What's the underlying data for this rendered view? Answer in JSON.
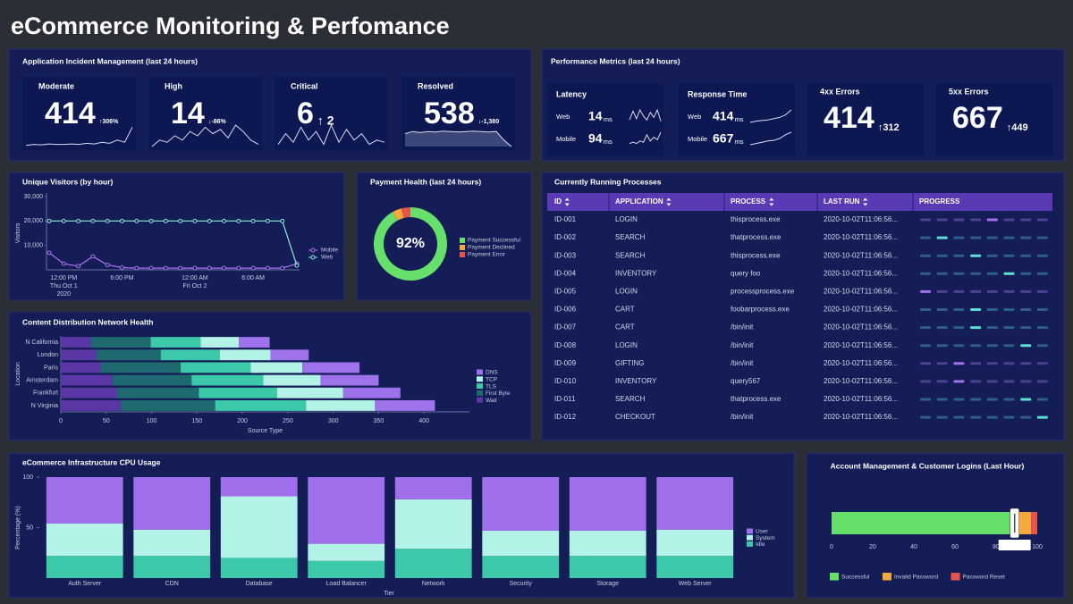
{
  "title": "eCommerce Monitoring & Perfomance",
  "incidents": {
    "title": "Application Incident Management (last 24 hours)",
    "tiles": [
      {
        "label": "Moderate",
        "value": 414,
        "change": "↑306%",
        "color": "#e8524f"
      },
      {
        "label": "High",
        "value": 14,
        "change": "↓-86%",
        "color": "#f5a93a"
      },
      {
        "label": "Critical",
        "value": 6,
        "change": "↑ 2",
        "color": "#e8524f"
      },
      {
        "label": "Resolved",
        "value": 538,
        "change": "↓-1,380",
        "color": "#5be36d"
      }
    ]
  },
  "performance": {
    "title": "Performance Metrics (last 24 hours)",
    "latency": {
      "label": "Latency",
      "rows": [
        {
          "label": "Web",
          "value": 14,
          "unit": "ms"
        },
        {
          "label": "Mobile",
          "value": 94,
          "unit": "ms"
        }
      ]
    },
    "response_time": {
      "label": "Response Time",
      "rows": [
        {
          "label": "Web",
          "value": 414,
          "unit": "ms"
        },
        {
          "label": "Mobile",
          "value": 667,
          "unit": "ms"
        }
      ]
    },
    "errors": [
      {
        "label": "4xx Errors",
        "value": 414,
        "change": "↑312",
        "color": "#e8524f"
      },
      {
        "label": "5xx Errors",
        "value": 667,
        "change": "↑449",
        "color": "#e8524f"
      }
    ]
  },
  "processes": {
    "title": "Currently Running Processes",
    "columns": [
      "ID",
      "APPLICATION",
      "PROCESS",
      "LAST RUN",
      "PROGRESS"
    ],
    "rows": [
      [
        "ID-001",
        "LOGIN",
        "thisprocess.exe",
        "2020-10-02T11:06:56..."
      ],
      [
        "ID-002",
        "SEARCH",
        "thatprocess.exe",
        "2020-10-02T11:06:56..."
      ],
      [
        "ID-003",
        "SEARCH",
        "thisprocess.exe",
        "2020-10-02T11:06:56..."
      ],
      [
        "ID-004",
        "INVENTORY",
        "query foo",
        "2020-10-02T11:06:56..."
      ],
      [
        "ID-005",
        "LOGIN",
        "processprocess.exe",
        "2020-10-02T11:06:56..."
      ],
      [
        "ID-006",
        "CART",
        "foobarprocess.exe",
        "2020-10-02T11:06:56..."
      ],
      [
        "ID-007",
        "CART",
        "/bin/init",
        "2020-10-02T11:06:56..."
      ],
      [
        "ID-008",
        "LOGIN",
        "/bin/init",
        "2020-10-02T11:06:56..."
      ],
      [
        "ID-009",
        "GIFTING",
        "/bin/init",
        "2020-10-02T11:06:56..."
      ],
      [
        "ID-010",
        "INVENTORY",
        "query567",
        "2020-10-02T11:06:56..."
      ],
      [
        "ID-011",
        "SEARCH",
        "thatprocess.exe",
        "2020-10-02T11:06:56..."
      ],
      [
        "ID-012",
        "CHECKOUT",
        "/bin/init",
        "2020-10-02T11:06:56..."
      ]
    ]
  },
  "chart_data": [
    {
      "type": "line",
      "title": "Unique Visitors (by hour)",
      "y_label": "Visitors",
      "categories": [
        null,
        "12:00 PM",
        null,
        null,
        null,
        "6:00 PM",
        null,
        null,
        null,
        null,
        "12:00 AM",
        null,
        null,
        null,
        "6:00 AM",
        null,
        null,
        null
      ],
      "category_dates": [
        null,
        "Thu Oct 1",
        null,
        null,
        null,
        null,
        null,
        null,
        null,
        null,
        "Fri Oct 2",
        null,
        null,
        null,
        null,
        null,
        null,
        null
      ],
      "year_label": "2020",
      "series": [
        {
          "name": "Mobile",
          "color": "#a875f0",
          "values": [
            7000,
            2500,
            1500,
            5500,
            2000,
            900,
            700,
            700,
            700,
            700,
            700,
            700,
            700,
            700,
            700,
            700,
            700,
            2500
          ]
        },
        {
          "name": "Web",
          "color": "#8fe8d8",
          "values": [
            20000,
            20000,
            20000,
            20000,
            20000,
            20000,
            20000,
            20000,
            20000,
            20000,
            20000,
            20000,
            20000,
            20000,
            20000,
            20000,
            20000,
            1800
          ]
        }
      ],
      "ylim": [
        0,
        30000
      ],
      "yticks": [
        {
          "value": 10000,
          "label": "10,000"
        },
        {
          "value": 20000,
          "label": "20,000"
        },
        {
          "value": 30000,
          "label": "30,000"
        }
      ],
      "markers": true,
      "legend": "right"
    },
    {
      "type": "donut",
      "title": "Payment Health (last 24 hours)",
      "categories": [
        "Payment Successful",
        "Payment Declined",
        "Payment Error"
      ],
      "values": [
        92,
        4,
        4
      ],
      "colors": [
        "#66e06a",
        "#f5a93a",
        "#e8524f"
      ],
      "center_label": "92%"
    },
    {
      "type": "barh",
      "stacked": true,
      "title": "Content Distribution Network Health",
      "x_label": "Source Type",
      "y_label": "Location",
      "categories": [
        "N California",
        "London",
        "Paris",
        "Amsterdam",
        "Frankfurt",
        "N Virginia"
      ],
      "series": [
        {
          "name": "Wait",
          "color": "#5b36a5",
          "values": [
            33,
            39,
            44,
            57,
            62,
            66
          ]
        },
        {
          "name": "First Byte",
          "color": "#1e6a70",
          "values": [
            66,
            71,
            88,
            87,
            90,
            104
          ]
        },
        {
          "name": "TLS",
          "color": "#3cc9aa",
          "values": [
            55,
            65,
            77,
            79,
            86,
            100
          ]
        },
        {
          "name": "TCP",
          "color": "#b3f2e6",
          "values": [
            42,
            56,
            57,
            63,
            73,
            76
          ]
        },
        {
          "name": "DNS",
          "color": "#9d72ea",
          "values": [
            34,
            42,
            63,
            64,
            63,
            66
          ]
        }
      ],
      "xlim": [
        0,
        450
      ],
      "xticks": [
        0,
        50,
        100,
        150,
        200,
        250,
        300,
        350,
        400
      ],
      "legend": "right"
    },
    {
      "type": "bar",
      "stacked": true,
      "title": "eCommerce Infrastructure CPU Usage",
      "x_label": "Tier",
      "y_label": "Percentage (%)",
      "categories": [
        "Auth Server",
        "CDN",
        "Database",
        "Load Balancer",
        "Network",
        "Security",
        "Storage",
        "Web Server"
      ],
      "series": [
        {
          "name": "Idle",
          "color": "#3cc9aa",
          "values": [
            22,
            22,
            20,
            17,
            29,
            22,
            22,
            22
          ]
        },
        {
          "name": "System",
          "color": "#b3f2e6",
          "values": [
            32,
            26,
            61,
            17,
            49,
            25,
            25,
            26
          ]
        },
        {
          "name": "User",
          "color": "#a070ec",
          "values": [
            46,
            52,
            19,
            66,
            22,
            53,
            53,
            52
          ]
        }
      ],
      "ylim": [
        0,
        100
      ],
      "yticks": [
        50,
        100
      ],
      "legend": "right"
    },
    {
      "type": "barh",
      "stacked": true,
      "title": "Account Management & Customer Logins (Last Hour)",
      "categories": [
        null
      ],
      "series": [
        {
          "name": "Successful",
          "color": "#66e06a",
          "values": [
            89
          ]
        },
        {
          "name": "Invalid Password",
          "color": "#f5a93a",
          "values": [
            8
          ]
        },
        {
          "name": "Password Reset",
          "color": "#e8524f",
          "values": [
            3
          ]
        }
      ],
      "xlim": [
        0,
        100
      ],
      "xticks": [
        0,
        20,
        40,
        60,
        80,
        100
      ],
      "marker_label": "89.00%",
      "legend": "bottom"
    }
  ]
}
